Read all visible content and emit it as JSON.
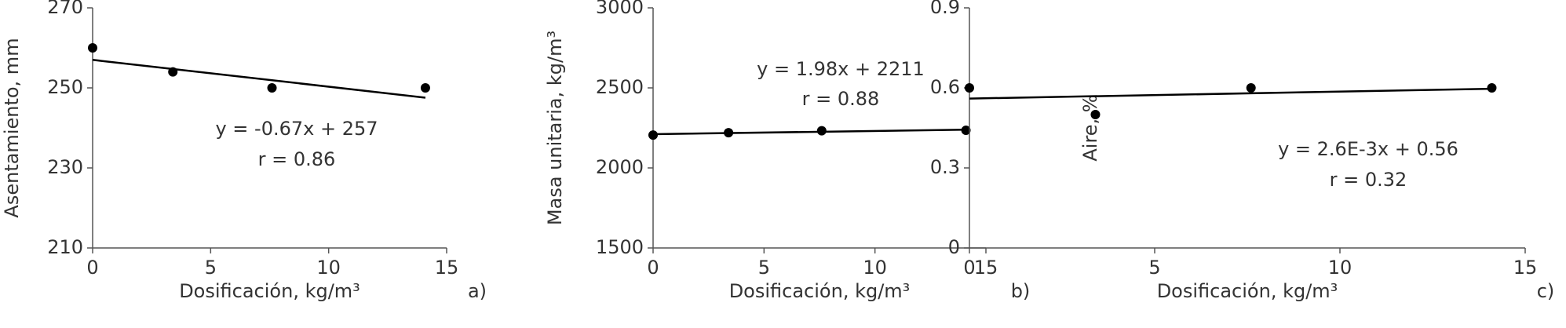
{
  "chart_data": [
    {
      "type": "scatter",
      "x": [
        0,
        3.4,
        7.6,
        14.1
      ],
      "values": [
        260,
        254,
        250,
        250
      ],
      "color": "#000000",
      "xlim": [
        0,
        15
      ],
      "xticks": [
        0,
        5,
        10,
        15
      ],
      "ylim": [
        210,
        270
      ],
      "yticks": [
        210,
        230,
        250,
        270
      ],
      "x_label": "Dosificación, kg/m³",
      "y_label": "Asentamiento, mm",
      "panel_label": "a)",
      "trendline": {
        "slope": -0.67,
        "intercept": 257
      },
      "annotations": [
        "y = -0.67x + 257",
        "r = 0.86"
      ]
    },
    {
      "type": "scatter",
      "x": [
        0,
        3.4,
        7.6,
        14.1
      ],
      "values": [
        2205,
        2220,
        2232,
        2235
      ],
      "color": "#000000",
      "xlim": [
        0,
        15
      ],
      "xticks": [
        0,
        5,
        10,
        15
      ],
      "ylim": [
        1500,
        3000
      ],
      "yticks": [
        1500,
        2000,
        2500,
        3000
      ],
      "x_label": "Dosificación, kg/m³",
      "y_label": "Masa unitaria, kg/m³",
      "panel_label": "b)",
      "trendline": {
        "slope": 1.98,
        "intercept": 2211
      },
      "annotations": [
        "y = 1.98x + 2211",
        "r = 0.88"
      ]
    },
    {
      "type": "scatter",
      "x": [
        0,
        3.4,
        7.6,
        14.1
      ],
      "values": [
        0.6,
        0.5,
        0.6,
        0.6
      ],
      "color": "#000000",
      "xlim": [
        0,
        15
      ],
      "xticks": [
        0,
        5,
        10,
        15
      ],
      "ylim": [
        0,
        0.9
      ],
      "yticks": [
        0,
        0.3,
        0.6,
        0.9
      ],
      "x_label": "Dosificación, kg/m³",
      "y_label": "Aire, %",
      "panel_label": "c)",
      "trendline": {
        "slope": 0.0026,
        "intercept": 0.56
      },
      "annotations": [
        "y = 2.6E-3x + 0.56",
        "r = 0.32"
      ]
    }
  ]
}
